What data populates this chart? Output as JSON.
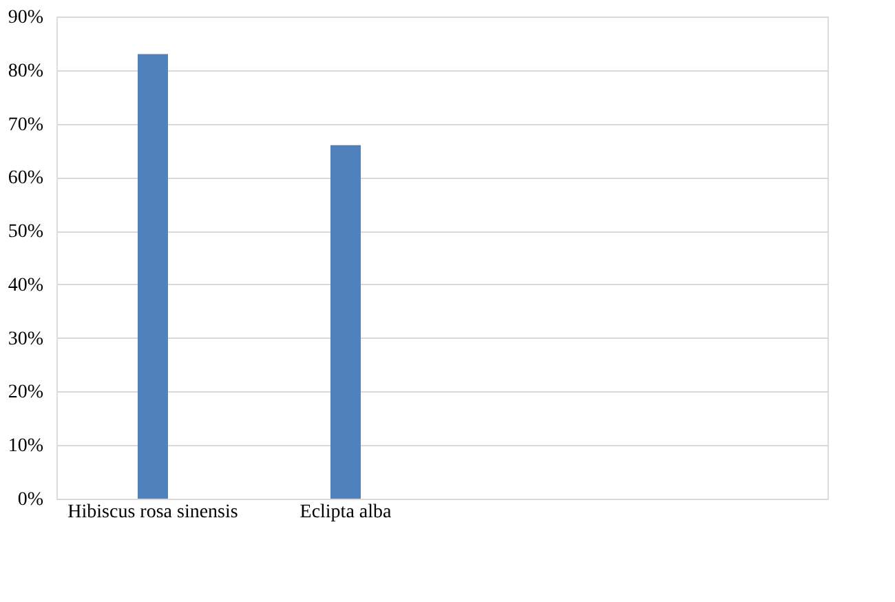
{
  "chart_data": {
    "type": "bar",
    "categories": [
      "Hibiscus rosa sinensis",
      "Eclipta alba",
      null,
      null
    ],
    "values": [
      83,
      66,
      null,
      null
    ],
    "color": "#4f81bd",
    "ylim": [
      0,
      90
    ],
    "yticks": [
      {
        "value": 0,
        "label": "0%"
      },
      {
        "value": 10,
        "label": "10%"
      },
      {
        "value": 20,
        "label": "20%"
      },
      {
        "value": 30,
        "label": "30%"
      },
      {
        "value": 40,
        "label": "40%"
      },
      {
        "value": 50,
        "label": "50%"
      },
      {
        "value": 60,
        "label": "60%"
      },
      {
        "value": 70,
        "label": "70%"
      },
      {
        "value": 80,
        "label": "80%"
      },
      {
        "value": 90,
        "label": "90%"
      }
    ],
    "grid": "y"
  }
}
